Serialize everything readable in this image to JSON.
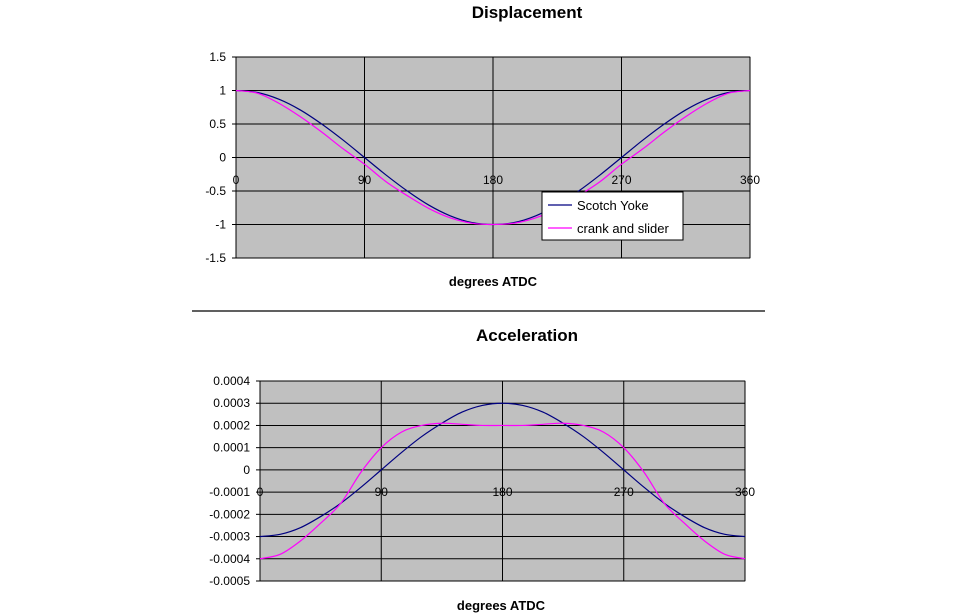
{
  "chart_data": [
    {
      "type": "line",
      "title": "Displacement",
      "xlabel": "degrees ATDC",
      "ylabel": "",
      "xlim": [
        0,
        360
      ],
      "ylim": [
        -1.5,
        1.5
      ],
      "x_ticks": [
        "0",
        "90",
        "180",
        "270",
        "360"
      ],
      "y_ticks": [
        "1.5",
        "1",
        "0.5",
        "0",
        "-0.5",
        "-1",
        "-1.5"
      ],
      "grid": true,
      "plot_background": "#c0c0c0",
      "legend": {
        "placement": "center-right",
        "entries": [
          "Scotch Yoke",
          "crank and slider"
        ]
      },
      "x": [
        0,
        15,
        30,
        45,
        60,
        75,
        90,
        105,
        120,
        135,
        150,
        165,
        180,
        195,
        210,
        225,
        240,
        255,
        270,
        285,
        300,
        315,
        330,
        345,
        360
      ],
      "series": [
        {
          "name": "Scotch Yoke",
          "color": "#000080",
          "values": [
            1.0,
            0.97,
            0.87,
            0.71,
            0.5,
            0.26,
            0.0,
            -0.26,
            -0.5,
            -0.71,
            -0.87,
            -0.97,
            -1.0,
            -0.97,
            -0.87,
            -0.71,
            -0.5,
            -0.26,
            0.0,
            0.26,
            0.5,
            0.71,
            0.87,
            0.97,
            1.0
          ]
        },
        {
          "name": "crank and slider",
          "color": "#ff00ff",
          "values": [
            1.0,
            0.96,
            0.81,
            0.61,
            0.38,
            0.13,
            -0.1,
            -0.36,
            -0.57,
            -0.76,
            -0.9,
            -0.98,
            -1.0,
            -0.98,
            -0.9,
            -0.76,
            -0.57,
            -0.36,
            -0.1,
            0.13,
            0.38,
            0.61,
            0.81,
            0.96,
            1.0
          ]
        }
      ]
    },
    {
      "type": "line",
      "title": "Acceleration",
      "xlabel": "degrees ATDC",
      "ylabel": "",
      "xlim": [
        0,
        360
      ],
      "ylim": [
        -0.0005,
        0.0004
      ],
      "x_ticks": [
        "0",
        "90",
        "180",
        "270",
        "360"
      ],
      "y_ticks": [
        "0.0004",
        "0.0003",
        "0.0002",
        "0.0001",
        "0",
        "-0.0001",
        "-0.0002",
        "-0.0003",
        "-0.0004",
        "-0.0005"
      ],
      "grid": true,
      "plot_background": "#c0c0c0",
      "x": [
        0,
        15,
        30,
        45,
        60,
        75,
        90,
        105,
        120,
        135,
        150,
        165,
        180,
        195,
        210,
        225,
        240,
        255,
        270,
        285,
        300,
        315,
        330,
        345,
        360
      ],
      "series": [
        {
          "name": "Scotch Yoke",
          "color": "#000080",
          "values": [
            -0.0003,
            -0.00029,
            -0.00026,
            -0.00021,
            -0.00015,
            -7.8e-05,
            0.0,
            7.8e-05,
            0.00015,
            0.00021,
            0.00026,
            0.00029,
            0.0003,
            0.00029,
            0.00026,
            0.00021,
            0.00015,
            7.8e-05,
            0.0,
            -7.8e-05,
            -0.00015,
            -0.00021,
            -0.00026,
            -0.00029,
            -0.0003
          ]
        },
        {
          "name": "crank and slider",
          "color": "#ff00ff",
          "values": [
            -0.0004,
            -0.00038,
            -0.00032,
            -0.00024,
            -0.00015,
            -1e-05,
            0.0001,
            0.00017,
            0.0002,
            0.00021,
            0.000205,
            0.0002,
            0.0002,
            0.0002,
            0.000205,
            0.00021,
            0.0002,
            0.00017,
            0.0001,
            -1e-05,
            -0.00015,
            -0.00024,
            -0.00032,
            -0.00038,
            -0.0004
          ]
        }
      ]
    }
  ]
}
